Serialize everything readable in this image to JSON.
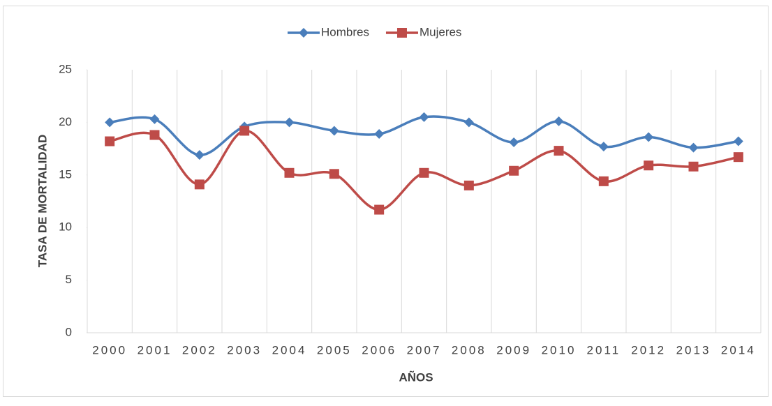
{
  "chart_data": {
    "type": "line",
    "x_label": "AÑOS",
    "y_label": "TASA DE MORTALIDAD",
    "categories": [
      "2000",
      "2001",
      "2002",
      "2003",
      "2004",
      "2005",
      "2006",
      "2007",
      "2008",
      "2009",
      "2010",
      "2011",
      "2012",
      "2013",
      "2014"
    ],
    "series": [
      {
        "name": "Hombres",
        "color": "#4a7ebb",
        "marker": "diamond",
        "values": [
          20.0,
          20.3,
          16.9,
          19.6,
          20.0,
          19.2,
          18.9,
          20.5,
          20.0,
          18.1,
          20.1,
          17.7,
          18.6,
          17.6,
          18.2
        ]
      },
      {
        "name": "Mujeres",
        "color": "#be4b48",
        "marker": "square",
        "values": [
          18.2,
          18.8,
          14.1,
          19.2,
          15.2,
          15.1,
          11.7,
          15.2,
          14.0,
          15.4,
          17.3,
          14.4,
          15.9,
          15.8,
          16.7
        ]
      }
    ],
    "ylim": [
      0,
      25
    ],
    "yticks": [
      0,
      5,
      10,
      15,
      20,
      25
    ],
    "smooth": true,
    "vertical_grid": true,
    "legend": "top"
  }
}
